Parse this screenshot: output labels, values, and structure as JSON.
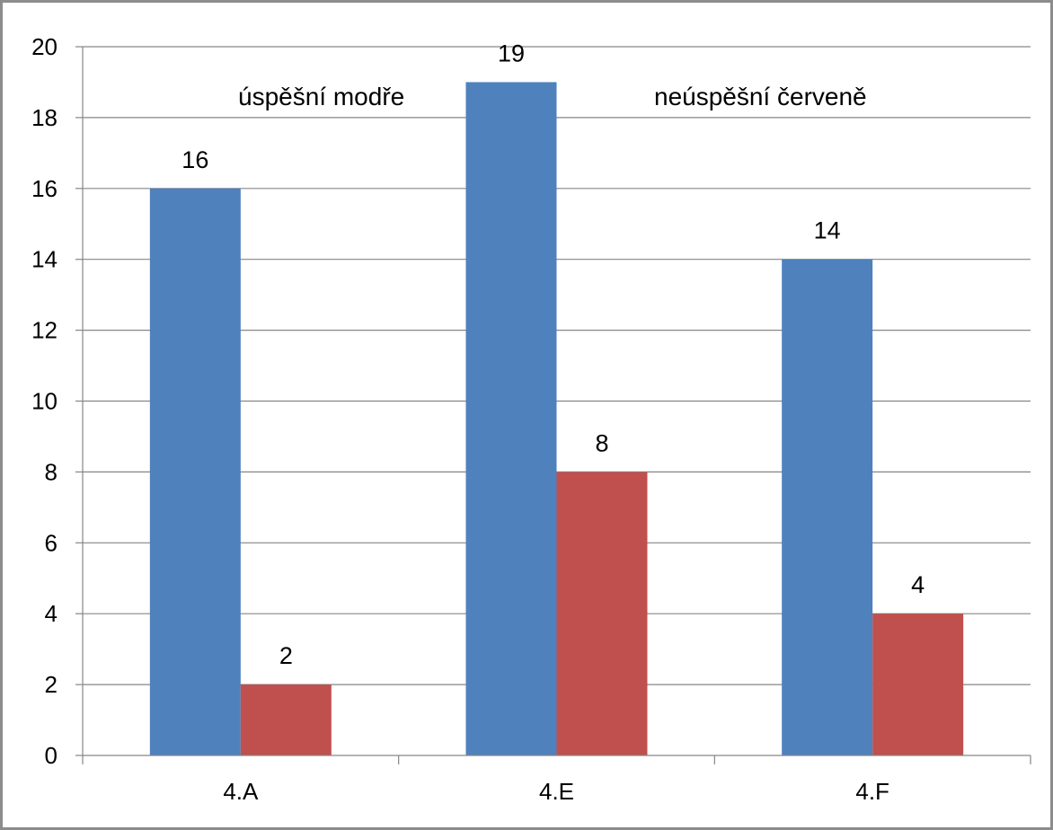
{
  "chart_data": {
    "type": "bar",
    "title": "",
    "xlabel": "",
    "ylabel": "",
    "categories": [
      "4.A",
      "4.E",
      "4.F"
    ],
    "series": [
      {
        "values": [
          16,
          19,
          14
        ],
        "color": "#4f81bd"
      },
      {
        "values": [
          2,
          8,
          4
        ],
        "color": "#c0504d"
      }
    ],
    "ylim": [
      0,
      20
    ],
    "yticks": [
      0,
      2,
      4,
      6,
      8,
      10,
      12,
      14,
      16,
      18,
      20
    ],
    "grid": true,
    "legend": "none",
    "data_labels": true,
    "annotations": [
      {
        "text": "úspěšní modře"
      },
      {
        "text": "neúspěšní červeně"
      }
    ]
  }
}
